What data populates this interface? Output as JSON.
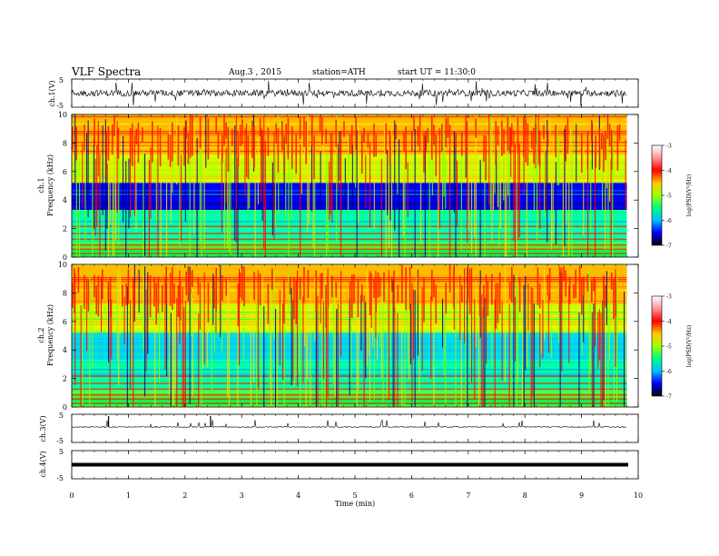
{
  "header": {
    "title": "VLF  Spectra",
    "date": "Aug.3  , 2015",
    "station": "station=ATH",
    "start": "start  UT =   11:30:0"
  },
  "chart_data": {
    "type": "heatmap",
    "x_axis": {
      "label": "Time  (min)",
      "range": [
        0,
        10
      ],
      "ticks": [
        "0",
        "1",
        "2",
        "3",
        "4",
        "5",
        "6",
        "7",
        "8",
        "9",
        "10"
      ]
    },
    "panels": [
      {
        "id": "ch1_waveform",
        "type": "line",
        "ylabel": "ch.1(V)",
        "yticks": [
          "5",
          "-5"
        ],
        "ylim": [
          -5,
          5
        ]
      },
      {
        "id": "ch1_spectrogram",
        "type": "heatmap",
        "ylabel_top": "ch.1",
        "ylabel": "Frequency  (kHz)",
        "yticks": [
          "0",
          "2",
          "4",
          "6",
          "8",
          "10"
        ],
        "ylim": [
          0,
          10
        ],
        "colorbar": {
          "label": "log(PSD(V²/Hz)",
          "ticks": [
            "-3",
            "-4",
            "-5",
            "-6",
            "-7"
          ],
          "range": [
            -7,
            -3
          ]
        }
      },
      {
        "id": "ch2_spectrogram",
        "type": "heatmap",
        "ylabel_top": "ch.2",
        "ylabel": "Frequency  (kHz)",
        "yticks": [
          "0",
          "2",
          "4",
          "6",
          "8",
          "10"
        ],
        "ylim": [
          0,
          10
        ],
        "colorbar": {
          "label": "log(PSD(V²/Hz)",
          "ticks": [
            "-3",
            "-4",
            "-5",
            "-6",
            "-7"
          ],
          "range": [
            -7,
            -3
          ]
        }
      },
      {
        "id": "ch3_waveform",
        "type": "line",
        "ylabel": "ch.3(V)",
        "yticks": [
          "5",
          "-5"
        ],
        "ylim": [
          -5,
          5
        ]
      },
      {
        "id": "ch4_waveform",
        "type": "line",
        "ylabel": "ch.4(V)",
        "yticks": [
          "5",
          "-5"
        ],
        "ylim": [
          -5,
          5
        ]
      }
    ],
    "data_end_minute": 9.8
  }
}
